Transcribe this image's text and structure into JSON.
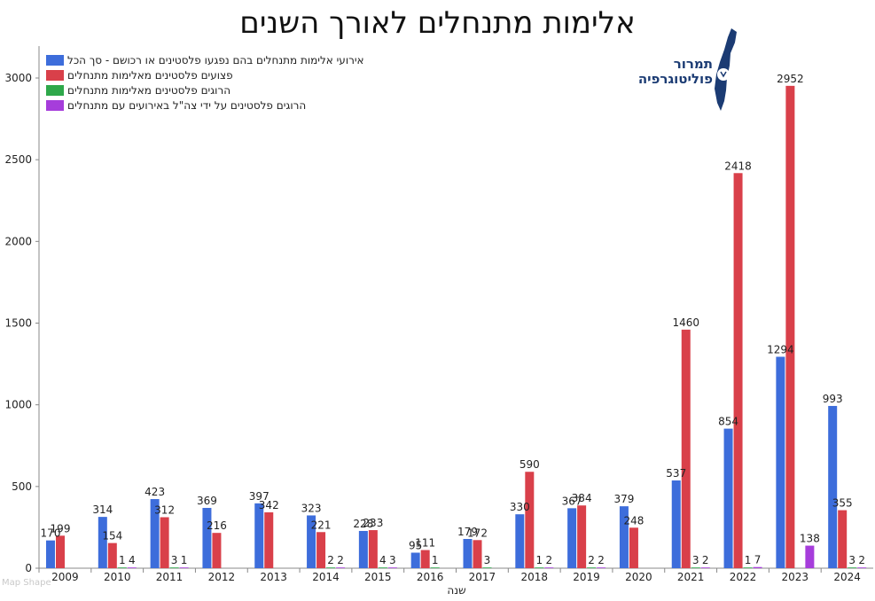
{
  "page": {
    "title": "אלימות מתנחלים לאורך השנים"
  },
  "logo": {
    "text": "תמרור פוליטוגרפיה"
  },
  "watermark": {
    "text": "Map Shape"
  },
  "chart_data": {
    "type": "bar",
    "title": "אלימות מתנחלים לאורך השנים",
    "xlabel": "שנה",
    "ylabel": "",
    "ylim": [
      0,
      3000
    ],
    "yticks": [
      0,
      500,
      1000,
      1500,
      2000,
      2500,
      3000
    ],
    "grid": false,
    "legend_position": "top-left",
    "categories": [
      "2009",
      "2010",
      "2011",
      "2012",
      "2013",
      "2014",
      "2015",
      "2016",
      "2017",
      "2018",
      "2019",
      "2020",
      "2021",
      "2022",
      "2023",
      "2024"
    ],
    "series": [
      {
        "name": "אירועי אלימות מתנחלים בהם נפגעו פלסטינים או רכושם - סך הכל",
        "color": "#3d6ddb",
        "values": [
          170,
          314,
          423,
          369,
          397,
          323,
          228,
          95,
          179,
          330,
          367,
          379,
          537,
          854,
          1294,
          993
        ]
      },
      {
        "name": "פצועים פלסטינים מאלימות מתנחלים",
        "color": "#d9404a",
        "values": [
          199,
          154,
          312,
          216,
          342,
          221,
          233,
          111,
          172,
          590,
          384,
          248,
          1460,
          2418,
          2952,
          355
        ]
      },
      {
        "name": "הרוגים פלסטינים מאלימות מתנחלים",
        "color": "#2ea84a",
        "values": [
          null,
          1,
          3,
          null,
          null,
          2,
          4,
          1,
          3,
          1,
          2,
          null,
          3,
          1,
          null,
          3
        ]
      },
      {
        "name": "הרוגים פלסטינים על ידי צה\"ל באירועים עם מתנחלים",
        "color": "#a63ddb",
        "values": [
          null,
          4,
          1,
          null,
          null,
          2,
          3,
          null,
          null,
          2,
          2,
          null,
          2,
          7,
          138,
          2
        ]
      }
    ]
  }
}
